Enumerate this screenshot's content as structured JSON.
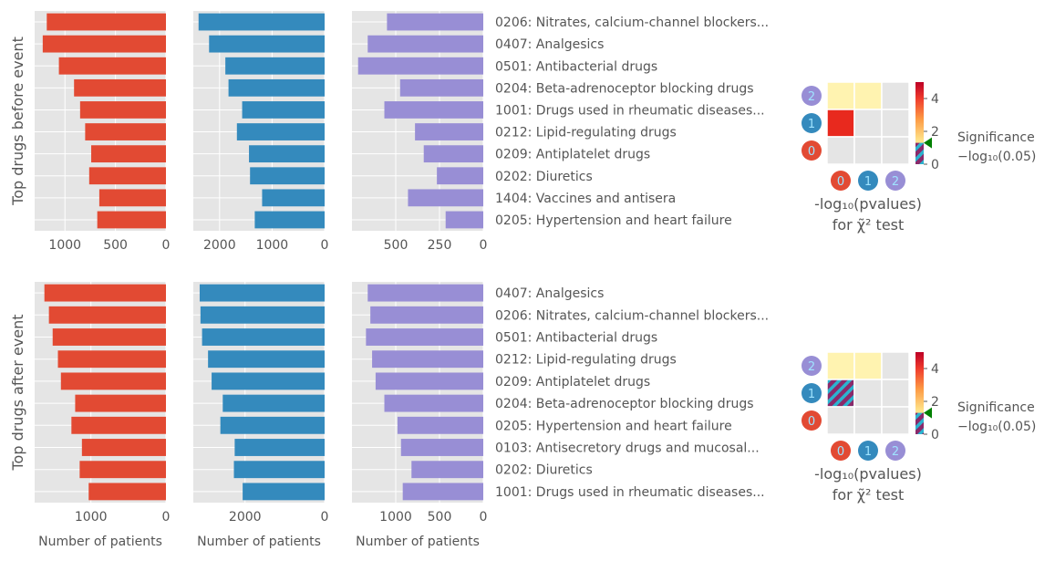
{
  "colors": {
    "series_0": "#e24a33",
    "series_1": "#348abd",
    "series_2": "#988ed5",
    "panel_bg": "#e5e5e5",
    "grid": "#ffffff",
    "text": "#555555",
    "marker": "#008000"
  },
  "chart_data": [
    {
      "type": "bar",
      "orientation": "horizontal",
      "row_label": "Top drugs before event",
      "categories": [
        "0206: Nitrates, calcium-channel blockers...",
        "0407: Analgesics",
        "0501: Antibacterial drugs",
        "0204: Beta-adrenoceptor blocking drugs",
        "1001: Drugs used in rheumatic diseases...",
        "0212: Lipid-regulating drugs",
        "0209: Antiplatelet drugs",
        "0202: Diuretics",
        "1404: Vaccines and antisera",
        "0205: Hypertension and heart failure"
      ],
      "panels": [
        {
          "xlim": [
            1300,
            0
          ],
          "xticks": [
            1000,
            500,
            0
          ],
          "xtick_labels": [
            "1000",
            "500",
            "0"
          ],
          "xlabel": "",
          "values": [
            1180,
            1220,
            1060,
            910,
            850,
            800,
            740,
            760,
            660,
            680
          ]
        },
        {
          "xlim": [
            2500,
            0
          ],
          "xticks": [
            2000,
            1000,
            0
          ],
          "xtick_labels": [
            "2000",
            "1000",
            "0"
          ],
          "xlabel": "",
          "values": [
            2400,
            2200,
            1890,
            1830,
            1570,
            1670,
            1440,
            1420,
            1190,
            1330
          ]
        },
        {
          "xlim": [
            750,
            0
          ],
          "xticks": [
            500,
            250,
            0
          ],
          "xtick_labels": [
            "500",
            "250",
            "0"
          ],
          "xlabel": "",
          "values": [
            550,
            660,
            715,
            475,
            565,
            390,
            340,
            265,
            430,
            215
          ]
        }
      ],
      "heatmap": {
        "type": "heatmap",
        "row_markers": [
          "2",
          "1",
          "0"
        ],
        "col_markers": [
          "0",
          "1",
          "2"
        ],
        "xlabel_line1": "-log₁₀(pvalues)",
        "xlabel_line2": "for χ̃² test",
        "cells": [
          [
            "low",
            "low",
            "nan"
          ],
          [
            "high",
            "nan",
            "nan"
          ],
          [
            "nan",
            "nan",
            "nan"
          ]
        ],
        "colorbar": {
          "range": [
            0,
            5
          ],
          "ticks": [
            0,
            2,
            4
          ],
          "tick_labels": [
            "0",
            "2",
            "4"
          ],
          "threshold": 1.3,
          "label_line1": "Significance",
          "label_line2": "−log₁₀(0.05)"
        }
      }
    },
    {
      "type": "bar",
      "orientation": "horizontal",
      "row_label": "Top drugs after event",
      "categories": [
        "0407: Analgesics",
        "0206: Nitrates, calcium-channel blockers...",
        "0501: Antibacterial drugs",
        "0212: Lipid-regulating drugs",
        "0209: Antiplatelet drugs",
        "0204: Beta-adrenoceptor blocking drugs",
        "0205: Hypertension and heart failure",
        "0103: Antisecretory drugs and mucosal...",
        "0202: Diuretics",
        "1001: Drugs used in rheumatic diseases..."
      ],
      "panels": [
        {
          "xlim": [
            1750,
            0
          ],
          "xticks": [
            1000,
            0
          ],
          "xtick_labels": [
            "1000",
            "0"
          ],
          "xlabel": "Number of patients",
          "values": [
            1620,
            1560,
            1510,
            1440,
            1400,
            1210,
            1260,
            1120,
            1150,
            1030
          ]
        },
        {
          "xlim": [
            3300,
            0
          ],
          "xticks": [
            2000,
            0
          ],
          "xtick_labels": [
            "2000",
            "0"
          ],
          "xlabel": "Number of patients",
          "values": [
            3140,
            3120,
            3080,
            2930,
            2840,
            2560,
            2620,
            2260,
            2280,
            2060
          ]
        },
        {
          "xlim": [
            1500,
            0
          ],
          "xticks": [
            1000,
            500,
            0
          ],
          "xtick_labels": [
            "1000",
            "500",
            "0"
          ],
          "xlabel": "Number of patients",
          "values": [
            1320,
            1290,
            1340,
            1270,
            1230,
            1130,
            980,
            940,
            820,
            920
          ]
        }
      ],
      "heatmap": {
        "type": "heatmap",
        "row_markers": [
          "2",
          "1",
          "0"
        ],
        "col_markers": [
          "0",
          "1",
          "2"
        ],
        "xlabel_line1": "-log₁₀(pvalues)",
        "xlabel_line2": "for χ̃² test",
        "cells": [
          [
            "low",
            "low",
            "nan"
          ],
          [
            "hatched",
            "nan",
            "nan"
          ],
          [
            "nan",
            "nan",
            "nan"
          ]
        ],
        "colorbar": {
          "range": [
            0,
            5
          ],
          "ticks": [
            0,
            2,
            4
          ],
          "tick_labels": [
            "0",
            "2",
            "4"
          ],
          "threshold": 1.3,
          "label_line1": "Significance",
          "label_line2": "−log₁₀(0.05)"
        }
      }
    }
  ]
}
